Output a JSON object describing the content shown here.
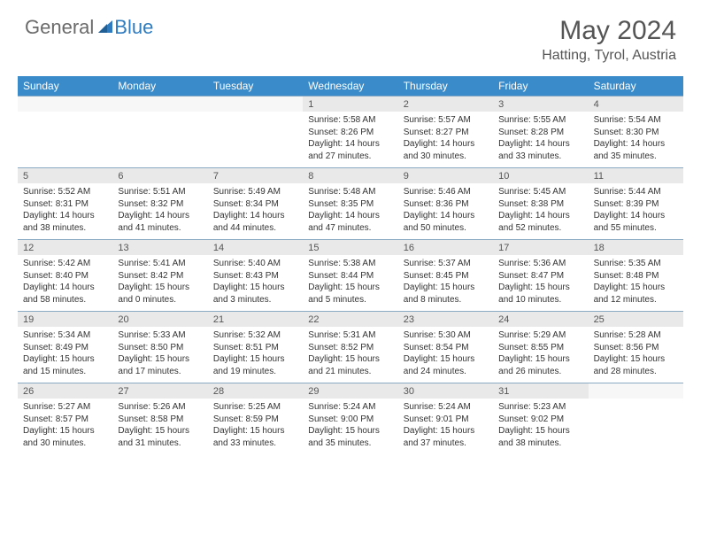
{
  "brand": {
    "part1": "General",
    "part2": "Blue"
  },
  "title": "May 2024",
  "location": "Hatting, Tyrol, Austria",
  "colors": {
    "headerBar": "#3a8bc9",
    "dayNumBg": "#e9e9e9",
    "rowBorder": "#8aa9c2",
    "text": "#333333",
    "titleText": "#555555"
  },
  "weekdays": [
    "Sunday",
    "Monday",
    "Tuesday",
    "Wednesday",
    "Thursday",
    "Friday",
    "Saturday"
  ],
  "weeks": [
    [
      null,
      null,
      null,
      {
        "n": "1",
        "sr": "5:58 AM",
        "ss": "8:26 PM",
        "dl": "14 hours and 27 minutes."
      },
      {
        "n": "2",
        "sr": "5:57 AM",
        "ss": "8:27 PM",
        "dl": "14 hours and 30 minutes."
      },
      {
        "n": "3",
        "sr": "5:55 AM",
        "ss": "8:28 PM",
        "dl": "14 hours and 33 minutes."
      },
      {
        "n": "4",
        "sr": "5:54 AM",
        "ss": "8:30 PM",
        "dl": "14 hours and 35 minutes."
      }
    ],
    [
      {
        "n": "5",
        "sr": "5:52 AM",
        "ss": "8:31 PM",
        "dl": "14 hours and 38 minutes."
      },
      {
        "n": "6",
        "sr": "5:51 AM",
        "ss": "8:32 PM",
        "dl": "14 hours and 41 minutes."
      },
      {
        "n": "7",
        "sr": "5:49 AM",
        "ss": "8:34 PM",
        "dl": "14 hours and 44 minutes."
      },
      {
        "n": "8",
        "sr": "5:48 AM",
        "ss": "8:35 PM",
        "dl": "14 hours and 47 minutes."
      },
      {
        "n": "9",
        "sr": "5:46 AM",
        "ss": "8:36 PM",
        "dl": "14 hours and 50 minutes."
      },
      {
        "n": "10",
        "sr": "5:45 AM",
        "ss": "8:38 PM",
        "dl": "14 hours and 52 minutes."
      },
      {
        "n": "11",
        "sr": "5:44 AM",
        "ss": "8:39 PM",
        "dl": "14 hours and 55 minutes."
      }
    ],
    [
      {
        "n": "12",
        "sr": "5:42 AM",
        "ss": "8:40 PM",
        "dl": "14 hours and 58 minutes."
      },
      {
        "n": "13",
        "sr": "5:41 AM",
        "ss": "8:42 PM",
        "dl": "15 hours and 0 minutes."
      },
      {
        "n": "14",
        "sr": "5:40 AM",
        "ss": "8:43 PM",
        "dl": "15 hours and 3 minutes."
      },
      {
        "n": "15",
        "sr": "5:38 AM",
        "ss": "8:44 PM",
        "dl": "15 hours and 5 minutes."
      },
      {
        "n": "16",
        "sr": "5:37 AM",
        "ss": "8:45 PM",
        "dl": "15 hours and 8 minutes."
      },
      {
        "n": "17",
        "sr": "5:36 AM",
        "ss": "8:47 PM",
        "dl": "15 hours and 10 minutes."
      },
      {
        "n": "18",
        "sr": "5:35 AM",
        "ss": "8:48 PM",
        "dl": "15 hours and 12 minutes."
      }
    ],
    [
      {
        "n": "19",
        "sr": "5:34 AM",
        "ss": "8:49 PM",
        "dl": "15 hours and 15 minutes."
      },
      {
        "n": "20",
        "sr": "5:33 AM",
        "ss": "8:50 PM",
        "dl": "15 hours and 17 minutes."
      },
      {
        "n": "21",
        "sr": "5:32 AM",
        "ss": "8:51 PM",
        "dl": "15 hours and 19 minutes."
      },
      {
        "n": "22",
        "sr": "5:31 AM",
        "ss": "8:52 PM",
        "dl": "15 hours and 21 minutes."
      },
      {
        "n": "23",
        "sr": "5:30 AM",
        "ss": "8:54 PM",
        "dl": "15 hours and 24 minutes."
      },
      {
        "n": "24",
        "sr": "5:29 AM",
        "ss": "8:55 PM",
        "dl": "15 hours and 26 minutes."
      },
      {
        "n": "25",
        "sr": "5:28 AM",
        "ss": "8:56 PM",
        "dl": "15 hours and 28 minutes."
      }
    ],
    [
      {
        "n": "26",
        "sr": "5:27 AM",
        "ss": "8:57 PM",
        "dl": "15 hours and 30 minutes."
      },
      {
        "n": "27",
        "sr": "5:26 AM",
        "ss": "8:58 PM",
        "dl": "15 hours and 31 minutes."
      },
      {
        "n": "28",
        "sr": "5:25 AM",
        "ss": "8:59 PM",
        "dl": "15 hours and 33 minutes."
      },
      {
        "n": "29",
        "sr": "5:24 AM",
        "ss": "9:00 PM",
        "dl": "15 hours and 35 minutes."
      },
      {
        "n": "30",
        "sr": "5:24 AM",
        "ss": "9:01 PM",
        "dl": "15 hours and 37 minutes."
      },
      {
        "n": "31",
        "sr": "5:23 AM",
        "ss": "9:02 PM",
        "dl": "15 hours and 38 minutes."
      },
      null
    ]
  ],
  "labels": {
    "sunrise": "Sunrise: ",
    "sunset": "Sunset: ",
    "daylight": "Daylight: "
  }
}
